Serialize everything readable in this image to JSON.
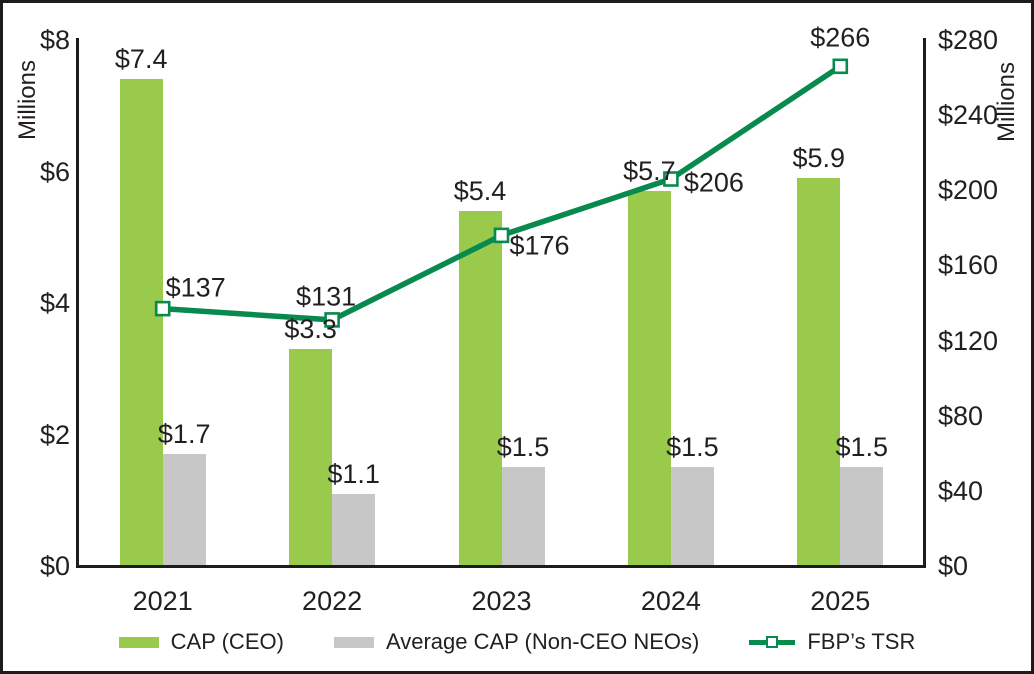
{
  "chart_data": {
    "type": "combo_bar_line",
    "categories": [
      "2021",
      "2022",
      "2023",
      "2024",
      "2025"
    ],
    "series": [
      {
        "name": "CAP (CEO)",
        "type": "bar",
        "axis": "left",
        "color": "#9aca4b",
        "values": [
          7.4,
          3.3,
          5.4,
          5.7,
          5.9
        ],
        "labels": [
          "$7.4",
          "$3.3",
          "$5.4",
          "$5.7",
          "$5.9"
        ]
      },
      {
        "name": "Average CAP (Non-CEO NEOs)",
        "type": "bar",
        "axis": "left",
        "color": "#c7c7c7",
        "values": [
          1.7,
          1.1,
          1.5,
          1.5,
          1.5
        ],
        "labels": [
          "$1.7",
          "$1.1",
          "$1.5",
          "$1.5",
          "$1.5"
        ]
      },
      {
        "name": "FBP’s TSR",
        "type": "line",
        "axis": "right",
        "color": "#088a4f",
        "marker": "open-square",
        "values": [
          137,
          131,
          176,
          206,
          266
        ],
        "labels": [
          "$137",
          "$131",
          "$176",
          "$206",
          "$266"
        ]
      }
    ],
    "left_axis": {
      "title": "Millions",
      "min": 0,
      "max": 8,
      "ticks": [
        "$0",
        "$2",
        "$4",
        "$6",
        "$8"
      ]
    },
    "right_axis": {
      "title": "Millions",
      "min": 0,
      "max": 280,
      "ticks": [
        "$0",
        "$40",
        "$80",
        "$120",
        "$160",
        "$200",
        "$240",
        "$280"
      ]
    },
    "legend": {
      "position": "bottom",
      "entries": [
        "CAP (CEO)",
        "Average CAP (Non-CEO NEOs)",
        "FBP’s TSR"
      ]
    },
    "grid": "off",
    "frame_color": "#1c1c1c"
  }
}
